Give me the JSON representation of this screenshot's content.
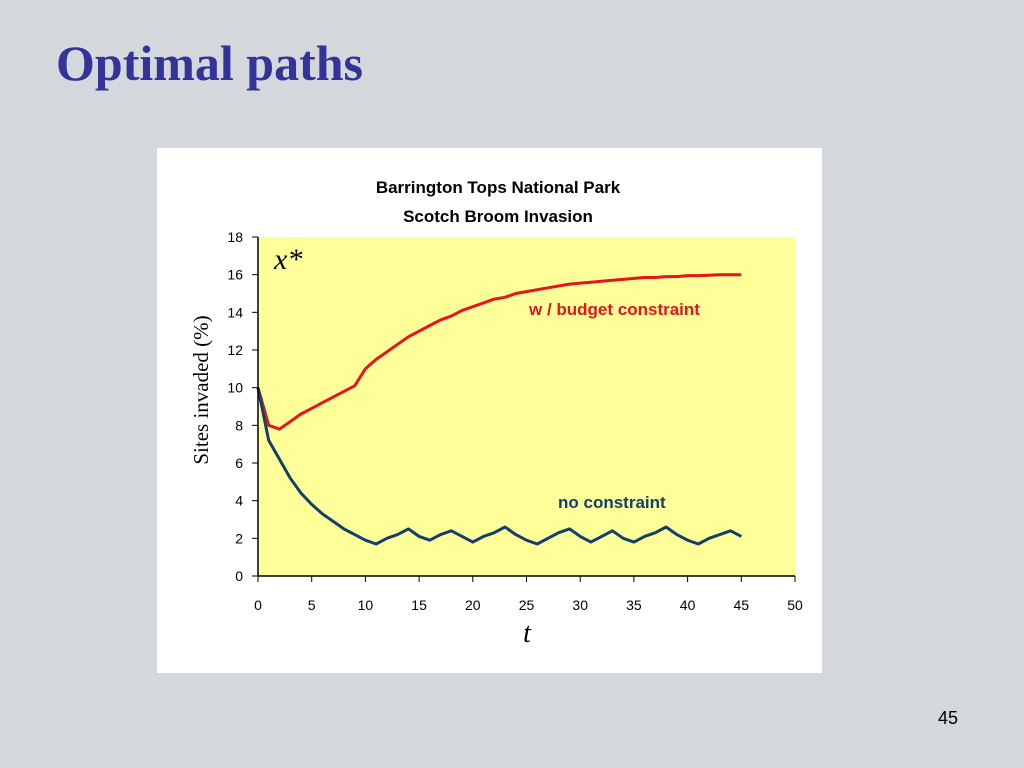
{
  "slide": {
    "title": "Optimal paths",
    "number": "45"
  },
  "chart_data": {
    "type": "line",
    "title": "Barrington Tops National Park",
    "subtitle": "Scotch Broom Invasion",
    "ylabel": "Sites invaded (%)",
    "xlabel": "t",
    "y_annotation": "x*",
    "xlim": [
      0,
      50
    ],
    "ylim": [
      0,
      18
    ],
    "xticks": [
      0,
      5,
      10,
      15,
      20,
      25,
      30,
      35,
      40,
      45,
      50
    ],
    "yticks": [
      0,
      2,
      4,
      6,
      8,
      10,
      12,
      14,
      16,
      18
    ],
    "plot_background": "#ffff99",
    "grid": false,
    "legend": "inline labels",
    "series": [
      {
        "name": "w / budget constraint",
        "color": "#e3161b",
        "x": [
          0,
          1,
          2,
          3,
          4,
          5,
          6,
          7,
          8,
          9,
          10,
          11,
          12,
          13,
          14,
          15,
          16,
          17,
          18,
          19,
          20,
          21,
          22,
          23,
          24,
          25,
          26,
          27,
          28,
          29,
          30,
          31,
          32,
          33,
          34,
          35,
          36,
          37,
          38,
          39,
          40,
          41,
          42,
          43,
          44,
          45
        ],
        "y": [
          10,
          8.0,
          7.8,
          8.2,
          8.6,
          8.9,
          9.2,
          9.5,
          9.8,
          10.1,
          11.0,
          11.5,
          11.9,
          12.3,
          12.7,
          13.0,
          13.3,
          13.6,
          13.8,
          14.1,
          14.3,
          14.5,
          14.7,
          14.8,
          15.0,
          15.1,
          15.2,
          15.3,
          15.4,
          15.5,
          15.55,
          15.6,
          15.65,
          15.7,
          15.75,
          15.8,
          15.85,
          15.85,
          15.9,
          15.9,
          15.95,
          15.95,
          15.97,
          16.0,
          16.0,
          16.0
        ]
      },
      {
        "name": "no constraint",
        "color": "#143f6b",
        "x": [
          0,
          1,
          2,
          3,
          4,
          5,
          6,
          7,
          8,
          9,
          10,
          11,
          12,
          13,
          14,
          15,
          16,
          17,
          18,
          19,
          20,
          21,
          22,
          23,
          24,
          25,
          26,
          27,
          28,
          29,
          30,
          31,
          32,
          33,
          34,
          35,
          36,
          37,
          38,
          39,
          40,
          41,
          42,
          43,
          44,
          45
        ],
        "y": [
          10,
          7.2,
          6.2,
          5.2,
          4.4,
          3.8,
          3.3,
          2.9,
          2.5,
          2.2,
          1.9,
          1.7,
          2.0,
          2.2,
          2.5,
          2.1,
          1.9,
          2.2,
          2.4,
          2.1,
          1.8,
          2.1,
          2.3,
          2.6,
          2.2,
          1.9,
          1.7,
          2.0,
          2.3,
          2.5,
          2.1,
          1.8,
          2.1,
          2.4,
          2.0,
          1.8,
          2.1,
          2.3,
          2.6,
          2.2,
          1.9,
          1.7,
          2.0,
          2.2,
          2.4,
          2.1
        ]
      }
    ]
  }
}
